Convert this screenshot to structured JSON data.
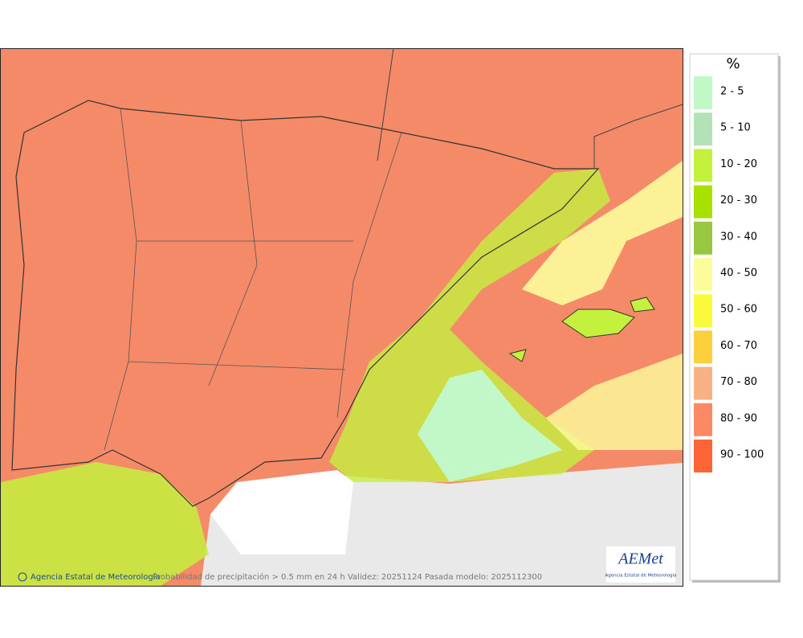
{
  "map": {
    "caption": "Probabilidad de precipitación > 0.5 mm en 24 h Validez: 20251124 Pasada modelo: 2025112300",
    "credit": "Agencia Estatal de Meteorología",
    "logo": {
      "name": "AEMet",
      "subtitle": "Agencia Estatal de Meteorología"
    }
  },
  "legend": {
    "title": "%",
    "items": [
      {
        "label": "2 - 5",
        "color": "#c2f7c8"
      },
      {
        "label": "5 - 10",
        "color": "#b3e2b9"
      },
      {
        "label": "10 - 20",
        "color": "#c4f03e"
      },
      {
        "label": "20 - 30",
        "color": "#a8e000"
      },
      {
        "label": "30 - 40",
        "color": "#98c842"
      },
      {
        "label": "40 - 50",
        "color": "#fdfc9c"
      },
      {
        "label": "50 - 60",
        "color": "#fafa3c"
      },
      {
        "label": "60 - 70",
        "color": "#fcd03c"
      },
      {
        "label": "70 - 80",
        "color": "#f8b084"
      },
      {
        "label": "80 - 90",
        "color": "#f98a63"
      },
      {
        "label": "90 - 100",
        "color": "#fd6436"
      }
    ]
  }
}
